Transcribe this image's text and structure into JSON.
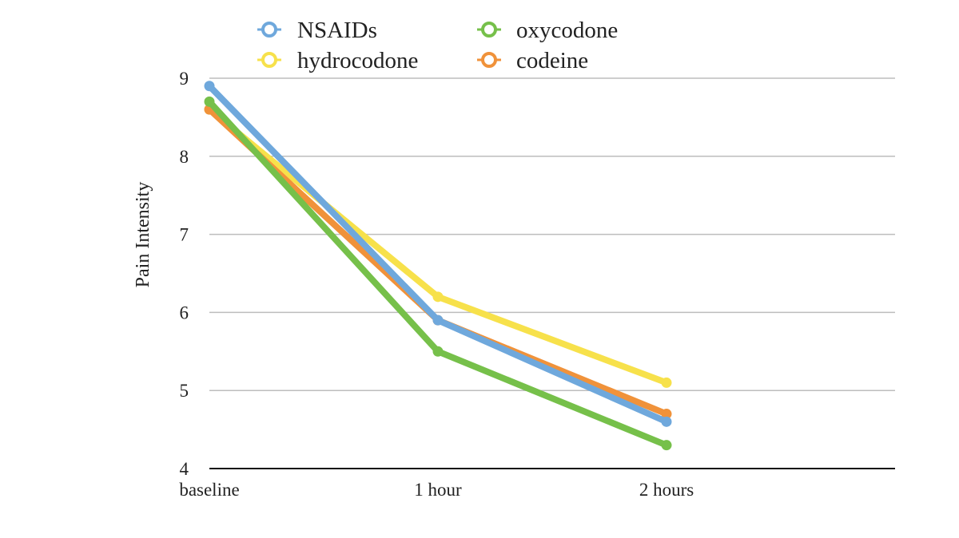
{
  "chart_data": {
    "type": "line",
    "title": "",
    "xlabel": "",
    "ylabel": "Pain Intensity",
    "categories": [
      "baseline",
      "1 hour",
      "2 hours"
    ],
    "ylim": [
      4,
      9
    ],
    "yticks": [
      "4",
      "5",
      "6",
      "7",
      "8",
      "9"
    ],
    "grid": true,
    "legend_position": "top",
    "series": [
      {
        "name": "NSAIDs",
        "color": "#6fa8dc",
        "values": [
          8.9,
          5.9,
          4.6
        ]
      },
      {
        "name": "hydrocodone",
        "color": "#f7e14b",
        "values": [
          8.6,
          6.2,
          5.1
        ]
      },
      {
        "name": "oxycodone",
        "color": "#76c04a",
        "values": [
          8.7,
          5.5,
          4.3
        ]
      },
      {
        "name": "codeine",
        "color": "#f0923a",
        "values": [
          8.6,
          5.9,
          4.7
        ]
      }
    ],
    "draw_order": [
      "hydrocodone",
      "codeine",
      "NSAIDs",
      "oxycodone"
    ]
  }
}
